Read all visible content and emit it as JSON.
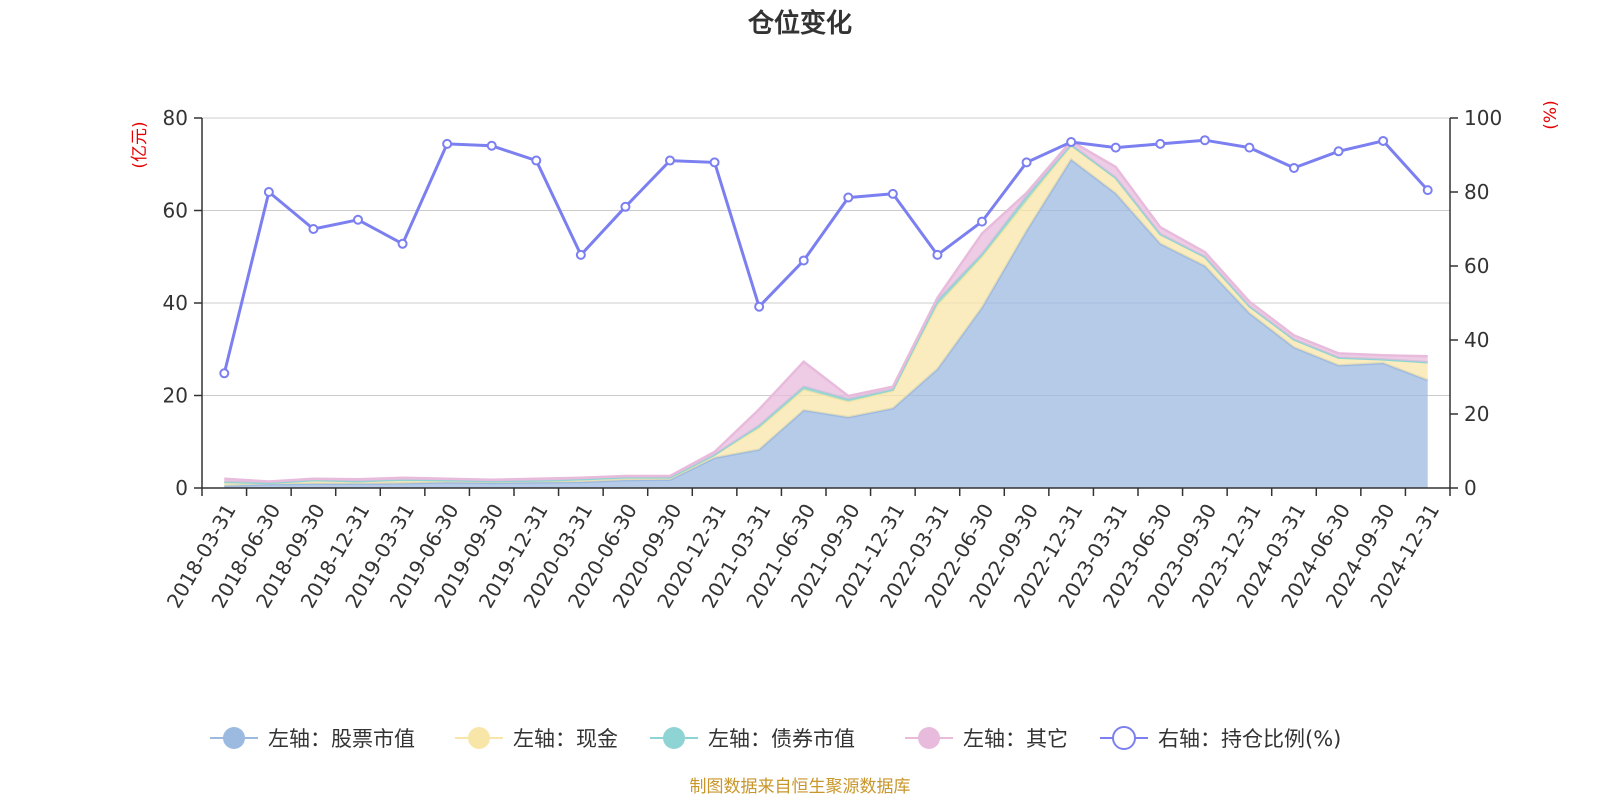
{
  "chart_data": {
    "type": "area",
    "title": "仓位变化",
    "left_axis_unit": "(亿元)",
    "right_axis_unit": "(%)",
    "left_ylim": [
      0,
      80
    ],
    "right_ylim": [
      0,
      100
    ],
    "left_ticks": [
      "0",
      "20",
      "40",
      "60",
      "80"
    ],
    "right_ticks": [
      "0",
      "20",
      "40",
      "60",
      "80",
      "100"
    ],
    "categories": [
      "2018-03-31",
      "2018-06-30",
      "2018-09-30",
      "2018-12-31",
      "2019-03-31",
      "2019-06-30",
      "2019-09-30",
      "2019-12-31",
      "2020-03-31",
      "2020-06-30",
      "2020-09-30",
      "2020-12-31",
      "2021-03-31",
      "2021-06-30",
      "2021-09-30",
      "2021-12-31",
      "2022-03-31",
      "2022-06-30",
      "2022-09-30",
      "2022-12-31",
      "2023-03-31",
      "2023-06-30",
      "2023-09-30",
      "2023-12-31",
      "2024-03-31",
      "2024-06-30",
      "2024-09-30",
      "2024-12-31"
    ],
    "series": [
      {
        "name": "左轴：股票市值",
        "axis": "left",
        "color": "#9cb9e0",
        "values": [
          0.5,
          0.8,
          0.9,
          0.9,
          1.0,
          1.2,
          1.1,
          1.2,
          1.3,
          1.7,
          1.8,
          6.5,
          8.3,
          16.8,
          15.3,
          17.2,
          25.7,
          39.0,
          55.6,
          71.0,
          63.7,
          52.8,
          48.0,
          37.8,
          30.4,
          26.5,
          27.0,
          23.3
        ]
      },
      {
        "name": "左轴：现金",
        "axis": "left",
        "color": "#f8e6a8",
        "values": [
          0.8,
          0.3,
          0.8,
          0.6,
          0.8,
          0.5,
          0.4,
          0.4,
          0.6,
          0.6,
          0.5,
          0.7,
          4.7,
          4.5,
          3.4,
          3.8,
          13.9,
          11.0,
          6.5,
          3.0,
          3.4,
          2.1,
          2.0,
          1.5,
          1.7,
          1.7,
          0.8,
          3.9
        ]
      },
      {
        "name": "左轴：债券市值",
        "axis": "left",
        "color": "#8fd4d4",
        "values": [
          0,
          0,
          0,
          0,
          0,
          0,
          0,
          0,
          0,
          0,
          0,
          0,
          0.5,
          0.6,
          0.5,
          0.3,
          0.9,
          0.6,
          1.0,
          0.2,
          0,
          0,
          0,
          0,
          0,
          0,
          0,
          0
        ]
      },
      {
        "name": "左轴：其它",
        "axis": "left",
        "color": "#e8bbdc",
        "values": [
          0.7,
          0.3,
          0.3,
          0.4,
          0.4,
          0.3,
          0.3,
          0.4,
          0.3,
          0.3,
          0.3,
          0.6,
          3.5,
          5.4,
          0.7,
          0.6,
          0.6,
          4.4,
          0.7,
          0.8,
          2.3,
          1.5,
          1.0,
          1.0,
          0.9,
          0.9,
          0.9,
          1.3
        ]
      },
      {
        "name": "右轴：持仓比例(%)",
        "axis": "right",
        "color": "#7b7ff0",
        "values": [
          31,
          80,
          70,
          72.5,
          66,
          93,
          92.5,
          88.5,
          63,
          76,
          88.5,
          88,
          49,
          61.5,
          78.5,
          79.5,
          63,
          72,
          88,
          93.5,
          92,
          93,
          94,
          92,
          86.5,
          91,
          93.8,
          80.5
        ]
      }
    ]
  },
  "legend": [
    {
      "label": "左轴：股票市值",
      "color": "#9cb9e0",
      "style": "filled"
    },
    {
      "label": "左轴：现金",
      "color": "#f8e6a8",
      "style": "filled"
    },
    {
      "label": "左轴：债券市值",
      "color": "#8fd4d4",
      "style": "filled"
    },
    {
      "label": "左轴：其它",
      "color": "#e8bbdc",
      "style": "filled"
    },
    {
      "label": "右轴：持仓比例(%)",
      "color": "#7b7ff0",
      "style": "hollow"
    }
  ],
  "source": "制图数据来自恒生聚源数据库"
}
